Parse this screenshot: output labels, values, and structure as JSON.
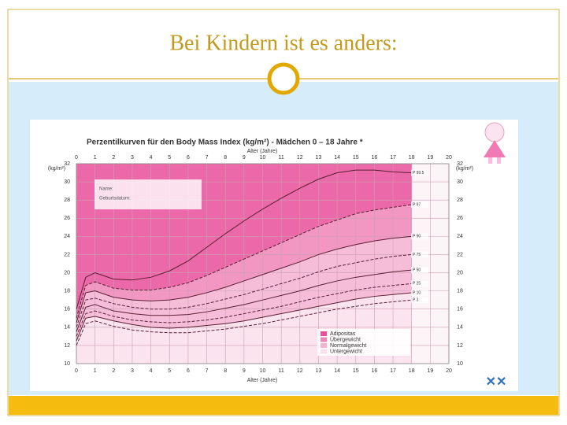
{
  "slide": {
    "title": "Bei Kindern ist es anders:"
  },
  "chart_data": {
    "type": "line",
    "title": "Perzentilkurven für den Body Mass Index (kg/m²) - Mädchen 0 – 18 Jahre *",
    "x_label": "Alter (Jahre)",
    "y_label": "(kg/m²)",
    "form_fields": [
      "Name:",
      "Geburtsdatum:"
    ],
    "x": [
      0,
      0.5,
      1,
      2,
      3,
      4,
      5,
      6,
      7,
      8,
      9,
      10,
      11,
      12,
      13,
      14,
      15,
      16,
      17,
      18
    ],
    "xlim": [
      0,
      20
    ],
    "xticks": [
      0,
      1,
      2,
      3,
      4,
      5,
      6,
      7,
      8,
      9,
      10,
      11,
      12,
      13,
      14,
      15,
      16,
      17,
      18,
      19,
      20
    ],
    "ylim": [
      10,
      32
    ],
    "yticks": [
      10,
      12,
      14,
      16,
      18,
      20,
      22,
      24,
      26,
      28,
      30,
      32
    ],
    "grid": true,
    "series": [
      {
        "name": "P 99.5",
        "color": "#5a1f35",
        "values": [
          16,
          19.5,
          20,
          19.3,
          19.2,
          19.5,
          20.2,
          21.3,
          22.8,
          24.3,
          25.7,
          27,
          28.2,
          29.3,
          30.3,
          31,
          31.3,
          31.3,
          31.1,
          31
        ]
      },
      {
        "name": "P 97",
        "color": "#5a1f35",
        "values": [
          15,
          18.6,
          19,
          18.3,
          18.1,
          18.1,
          18.4,
          18.9,
          19.7,
          20.6,
          21.5,
          22.4,
          23.3,
          24.2,
          25.1,
          25.8,
          26.5,
          26.9,
          27.2,
          27.5
        ]
      },
      {
        "name": "P 90",
        "color": "#5a1f35",
        "values": [
          14.5,
          17.8,
          18,
          17.3,
          17,
          16.9,
          17,
          17.3,
          17.8,
          18.4,
          19.1,
          19.8,
          20.5,
          21.2,
          22,
          22.6,
          23.1,
          23.5,
          23.8,
          24
        ]
      },
      {
        "name": "P 75",
        "color": "#5a1f35",
        "values": [
          14,
          17,
          17.2,
          16.6,
          16.2,
          16,
          16,
          16.2,
          16.6,
          17.1,
          17.6,
          18.2,
          18.8,
          19.4,
          20.1,
          20.7,
          21.1,
          21.5,
          21.8,
          22
        ]
      },
      {
        "name": "P 50",
        "color": "#5a1f35",
        "values": [
          13.5,
          16.2,
          16.5,
          15.8,
          15.5,
          15.3,
          15.3,
          15.4,
          15.7,
          16.1,
          16.5,
          17,
          17.5,
          18,
          18.6,
          19.1,
          19.5,
          19.8,
          20.1,
          20.3
        ]
      },
      {
        "name": "P 25",
        "color": "#5a1f35",
        "values": [
          13,
          15.5,
          15.8,
          15.2,
          14.8,
          14.6,
          14.5,
          14.6,
          14.8,
          15.1,
          15.5,
          15.9,
          16.3,
          16.8,
          17.3,
          17.7,
          18.1,
          18.4,
          18.6,
          18.8
        ]
      },
      {
        "name": "P 10",
        "color": "#5a1f35",
        "values": [
          12.5,
          15,
          15.2,
          14.7,
          14.3,
          14,
          13.9,
          14,
          14.2,
          14.4,
          14.7,
          15.1,
          15.5,
          15.9,
          16.3,
          16.7,
          17.1,
          17.4,
          17.6,
          17.8
        ]
      },
      {
        "name": "P 3",
        "color": "#5a1f35",
        "values": [
          12,
          14.4,
          14.7,
          14.1,
          13.7,
          13.5,
          13.4,
          13.4,
          13.6,
          13.8,
          14.1,
          14.4,
          14.8,
          15.2,
          15.6,
          16,
          16.3,
          16.6,
          16.8,
          17
        ]
      }
    ],
    "zones": [
      {
        "name": "Adipositas",
        "color": "#e8509a"
      },
      {
        "name": "Übergewicht",
        "color": "#ef86b8"
      },
      {
        "name": "Normalgewicht",
        "color": "#f5b3d2"
      },
      {
        "name": "Untergewicht",
        "color": "#fbe0ec"
      }
    ]
  }
}
